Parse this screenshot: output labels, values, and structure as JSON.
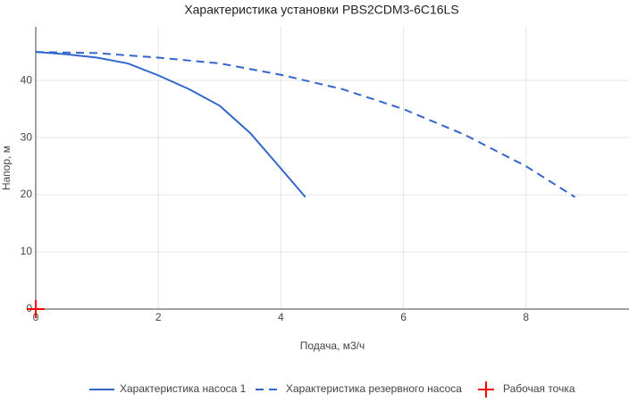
{
  "chart_data": {
    "type": "line",
    "title": "Характеристика установки PBS2CDM3-6C16LS",
    "x_label": "Подача, м3/ч",
    "y_label": "Напор, м",
    "xlim": [
      0,
      9.68
    ],
    "ylim": [
      0,
      49.4
    ],
    "xticks": [
      0,
      2,
      4,
      6,
      8
    ],
    "yticks": [
      0,
      10,
      20,
      30,
      40
    ],
    "grid": true,
    "series": [
      {
        "name": "Характеристика насоса 1",
        "color": "#3366cc",
        "style": "solid",
        "x": [
          0,
          0.5,
          1,
          1.5,
          2,
          2.5,
          3,
          3.5,
          4,
          4.4
        ],
        "values": [
          45,
          44.6,
          44,
          43,
          40.9,
          38.5,
          35.6,
          30.8,
          24.6,
          19.6
        ]
      },
      {
        "name": "Характеристика резервного насоса",
        "color": "#3366cc",
        "style": "dash",
        "x": [
          0,
          1,
          2,
          3,
          4,
          5,
          6,
          7,
          8,
          8.8
        ],
        "values": [
          45,
          44.8,
          44,
          43,
          41,
          38.5,
          35,
          30.5,
          25,
          19.6
        ]
      },
      {
        "name": "Рабочая точка",
        "color": "#ff0000",
        "style": "cross",
        "x": [
          0
        ],
        "values": [
          0
        ]
      }
    ]
  }
}
